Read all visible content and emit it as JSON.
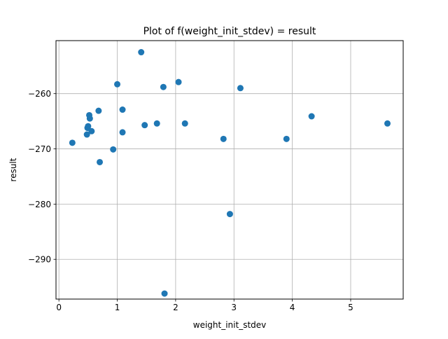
{
  "chart_data": {
    "type": "scatter",
    "title": "Plot of f(weight_init_stdev) = result",
    "xlabel": "weight_init_stdev",
    "ylabel": "result",
    "xlim": [
      -0.05,
      5.9
    ],
    "ylim": [
      -297.2,
      -250.4
    ],
    "xticks": [
      0,
      1,
      2,
      3,
      4,
      5
    ],
    "xtick_labels": [
      "0",
      "1",
      "2",
      "3",
      "4",
      "5"
    ],
    "yticks": [
      -290,
      -280,
      -270,
      -260
    ],
    "ytick_labels": [
      "−290",
      "−280",
      "−270",
      "−260"
    ],
    "grid": true,
    "marker_color": "#1f77b4",
    "points": [
      {
        "x": 0.23,
        "y": -268.9
      },
      {
        "x": 0.48,
        "y": -267.4
      },
      {
        "x": 0.49,
        "y": -266.2
      },
      {
        "x": 0.5,
        "y": -265.9
      },
      {
        "x": 0.52,
        "y": -263.9
      },
      {
        "x": 0.53,
        "y": -264.5
      },
      {
        "x": 0.56,
        "y": -266.8
      },
      {
        "x": 0.68,
        "y": -263.1
      },
      {
        "x": 0.7,
        "y": -272.4
      },
      {
        "x": 0.93,
        "y": -270.1
      },
      {
        "x": 1.0,
        "y": -258.3
      },
      {
        "x": 1.09,
        "y": -262.9
      },
      {
        "x": 1.09,
        "y": -267.0
      },
      {
        "x": 1.41,
        "y": -252.5
      },
      {
        "x": 1.47,
        "y": -265.7
      },
      {
        "x": 1.68,
        "y": -265.4
      },
      {
        "x": 1.79,
        "y": -258.8
      },
      {
        "x": 1.81,
        "y": -296.2
      },
      {
        "x": 2.05,
        "y": -257.9
      },
      {
        "x": 2.16,
        "y": -265.4
      },
      {
        "x": 2.82,
        "y": -268.2
      },
      {
        "x": 2.93,
        "y": -281.8
      },
      {
        "x": 3.11,
        "y": -259.0
      },
      {
        "x": 3.9,
        "y": -268.2
      },
      {
        "x": 4.33,
        "y": -264.1
      },
      {
        "x": 5.63,
        "y": -265.4
      }
    ]
  }
}
